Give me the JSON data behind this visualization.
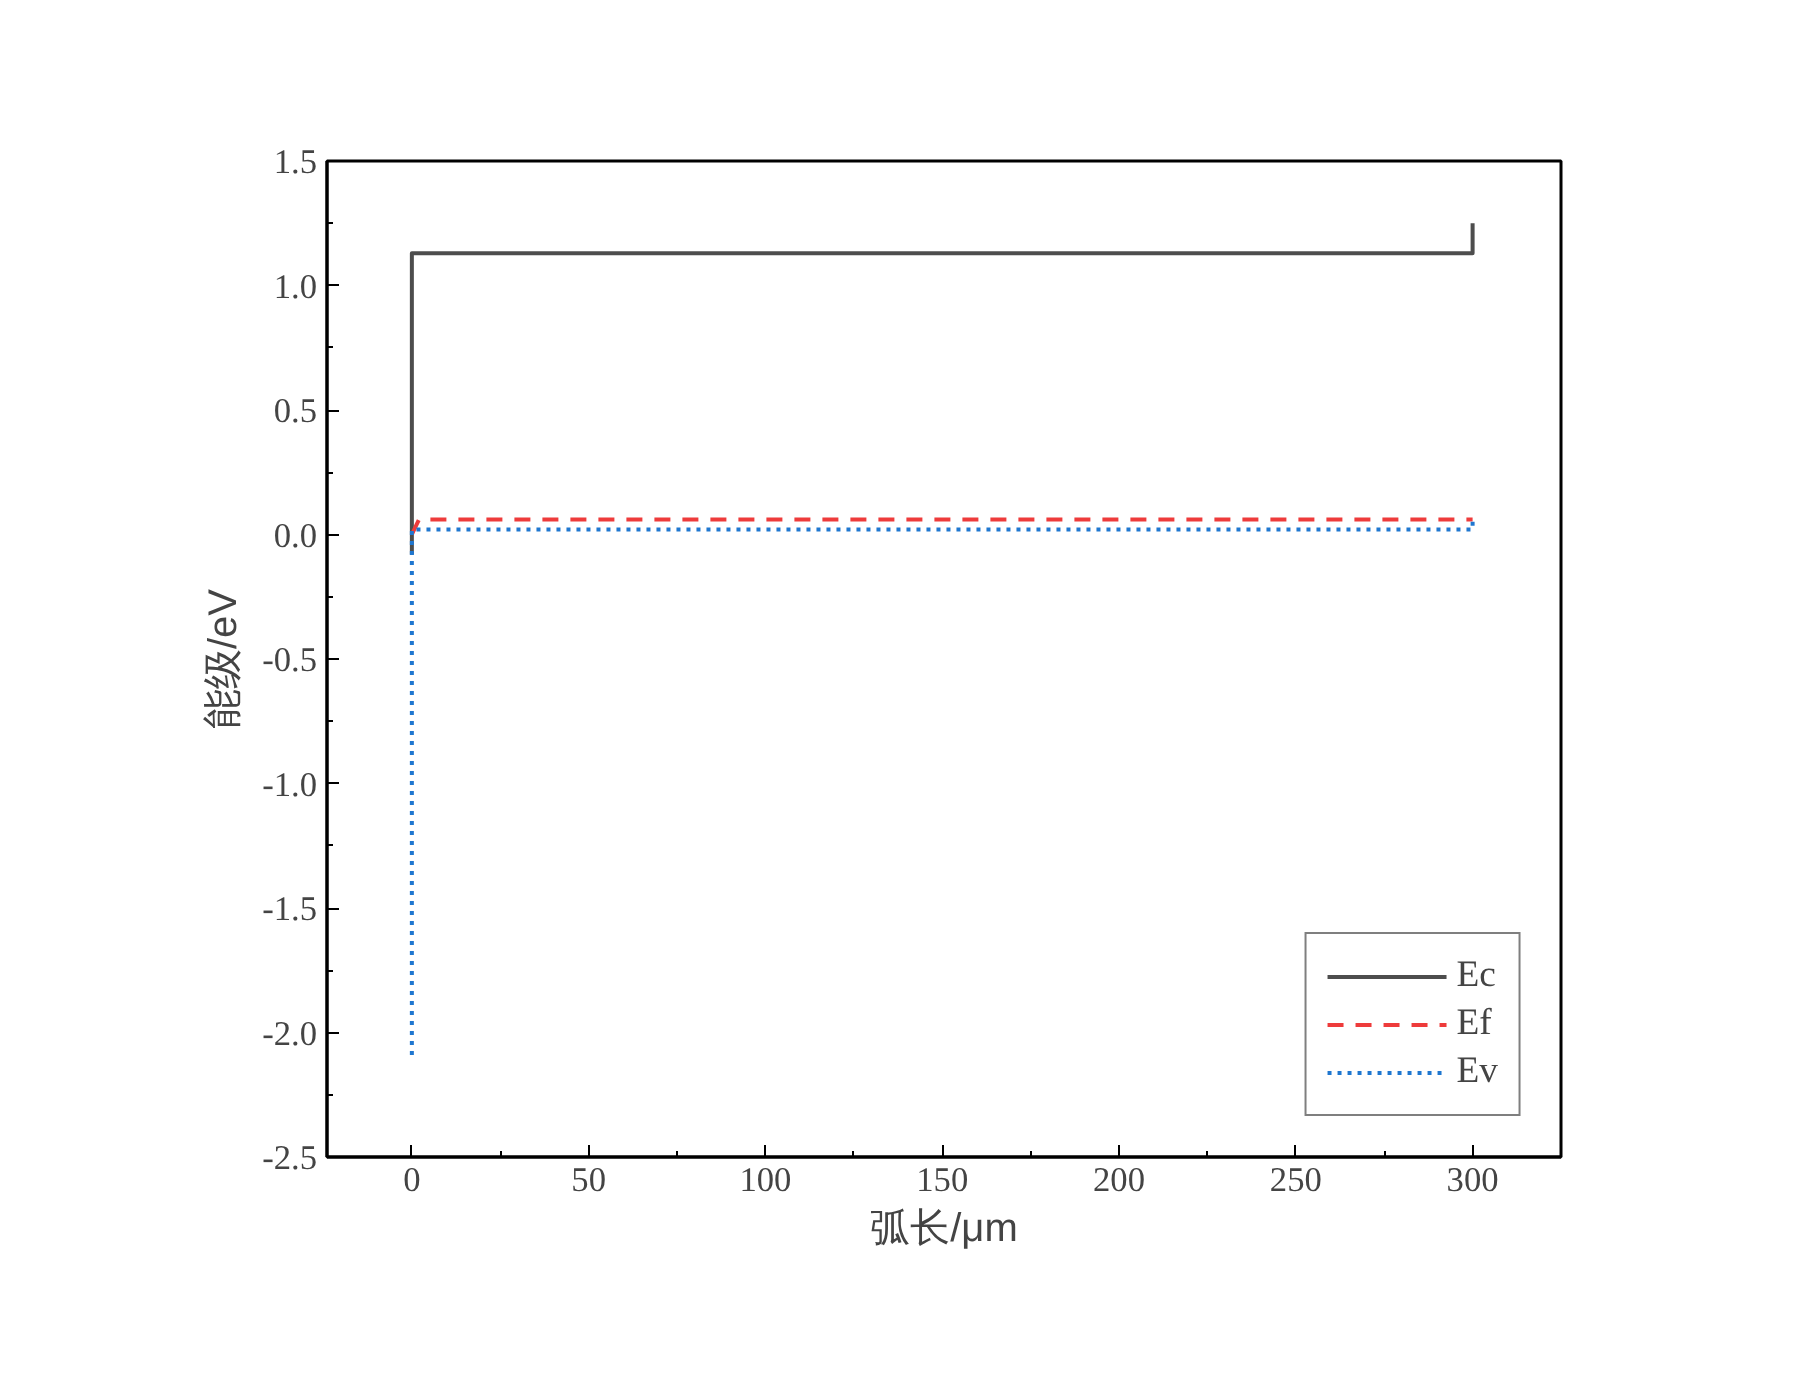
{
  "chart_data": {
    "type": "line",
    "xlabel": "弧长/μm",
    "ylabel": "能级/eV",
    "xlim": [
      -24,
      325
    ],
    "xticks": [
      0,
      50,
      100,
      150,
      200,
      250,
      300
    ],
    "ylim": [
      -2.5,
      1.5
    ],
    "yticks": [
      {
        "value": -2.5,
        "label": "-2.5"
      },
      {
        "value": -2.0,
        "label": "-2.0"
      },
      {
        "value": -1.5,
        "label": "-1.5"
      },
      {
        "value": -1.0,
        "label": "-1.0"
      },
      {
        "value": -0.5,
        "label": "-0.5"
      },
      {
        "value": 0.0,
        "label": "0.0"
      },
      {
        "value": 0.5,
        "label": "0.5"
      },
      {
        "value": 1.0,
        "label": "1.0"
      },
      {
        "value": 1.5,
        "label": "1.5"
      }
    ],
    "grid": false,
    "legend": "bottom right",
    "series": [
      {
        "name": "Ec",
        "color": "#4d4d4d",
        "line_style": "solid",
        "x": [
          0,
          0,
          300,
          300
        ],
        "values": [
          -0.08,
          1.13,
          1.13,
          1.25
        ]
      },
      {
        "name": "Ef",
        "color": "#ee3b3b",
        "line_style": "dashed",
        "x": [
          0,
          2,
          300
        ],
        "values": [
          0.0,
          0.06,
          0.06
        ]
      },
      {
        "name": "Ev",
        "color": "#1f77d0",
        "line_style": "dotted",
        "x": [
          0,
          0,
          300,
          300
        ],
        "values": [
          -2.09,
          0.02,
          0.02,
          0.07
        ]
      }
    ]
  }
}
